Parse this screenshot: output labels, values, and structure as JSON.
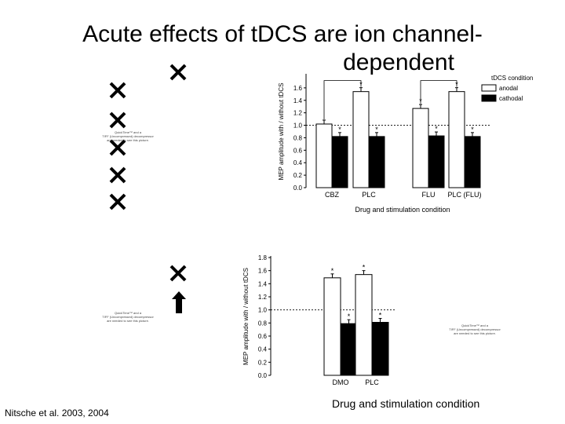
{
  "slide": {
    "title_line1": "Acute effects of tDCS are ion channel-",
    "title_line2": "dependent",
    "citation": "Nitsche et al. 2003, 2004",
    "bottom_xlabel": "Drug and stimulation condition"
  },
  "placeholders": {
    "line1": "QuickTime™ and a",
    "line2": "TIFF (Uncompressed) decompressor",
    "line3": "are needed to see this picture."
  },
  "icons": [
    "close-icon",
    "close-icon",
    "close-icon",
    "close-icon",
    "close-icon",
    "close-icon",
    "close-icon",
    "arrow-up-icon"
  ],
  "chart_data": [
    {
      "type": "bar",
      "categories": [
        "CBZ",
        "PLC",
        "FLU",
        "PLC (FLU)"
      ],
      "series": [
        {
          "name": "anodal",
          "values": [
            1.02,
            1.54,
            1.27,
            1.54
          ],
          "color": "#ffffff"
        },
        {
          "name": "cathodal",
          "values": [
            0.82,
            0.82,
            0.83,
            0.82
          ],
          "color": "#000000"
        }
      ],
      "asterisks": {
        "anodal": [
          false,
          true,
          true,
          true
        ],
        "cathodal": [
          true,
          true,
          true,
          true
        ]
      },
      "significance_brackets": [
        [
          0,
          1
        ],
        [
          2,
          3
        ]
      ],
      "legend_title": "tDCS condition",
      "legend_position": "top-right",
      "xlabel": "Drug and stimulation condition",
      "ylabel": "MEP amplitude with / without tDCS",
      "ylim": [
        0,
        1.8
      ],
      "yticks": [
        "0.0",
        "0.2",
        "0.4",
        "0.6",
        "0.8",
        "1.0",
        "1.2",
        "1.4",
        "1.6"
      ],
      "reference_line": 1.0
    },
    {
      "type": "bar",
      "categories": [
        "DMO",
        "PLC"
      ],
      "series": [
        {
          "name": "anodal",
          "values": [
            1.49,
            1.54
          ],
          "color": "#ffffff"
        },
        {
          "name": "cathodal",
          "values": [
            0.79,
            0.81
          ],
          "color": "#000000"
        }
      ],
      "asterisks": {
        "anodal": [
          true,
          true
        ],
        "cathodal": [
          true,
          true
        ]
      },
      "ylabel": "MEP amplitude with / without tDCS",
      "ylim": [
        0,
        1.8
      ],
      "yticks": [
        "0.0",
        "0.2",
        "0.4",
        "0.6",
        "0.8",
        "1.0",
        "1.2",
        "1.4",
        "1.6",
        "1.8"
      ],
      "reference_line": 1.0
    }
  ]
}
